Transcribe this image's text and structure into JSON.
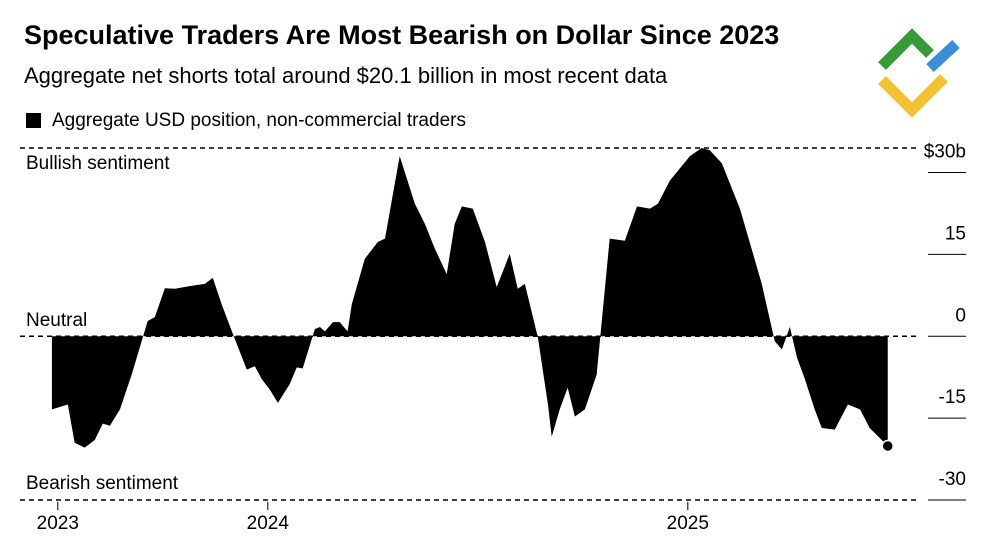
{
  "chart_data": {
    "type": "area",
    "title": "Speculative Traders Are Most Bearish on Dollar Since 2023",
    "subtitle": "Aggregate net shorts total around $20.1 billion in most recent data",
    "annotations": [
      "Bullish sentiment",
      "Neutral",
      "Bearish sentiment"
    ],
    "xlim": [
      2023.41,
      2025.529
    ],
    "xticks": [
      {
        "value": 2023.5,
        "label": "2023"
      },
      2024,
      2025
    ],
    "ylim": [
      -30,
      34.5
    ],
    "yticks": [
      {
        "value": 30,
        "label": "$30b"
      },
      15,
      0,
      -15,
      -30
    ],
    "series": [
      {
        "name": "Aggregate USD position, non-commercial traders",
        "color": "#000000",
        "x": [
          2023.486,
          2023.524,
          2023.54,
          2023.564,
          2023.588,
          2023.607,
          2023.624,
          2023.648,
          2023.676,
          2023.714,
          2023.731,
          2023.755,
          2023.779,
          2023.814,
          2023.85,
          2023.869,
          2023.89,
          2023.917,
          2023.95,
          2023.969,
          2023.986,
          2024.005,
          2024.024,
          2024.052,
          2024.069,
          2024.083,
          2024.112,
          2024.124,
          2024.136,
          2024.155,
          2024.171,
          2024.19,
          2024.2,
          2024.231,
          2024.262,
          2024.279,
          2024.314,
          2024.35,
          2024.374,
          2024.398,
          2024.426,
          2024.445,
          2024.462,
          2024.488,
          2024.517,
          2024.545,
          2024.576,
          2024.595,
          2024.612,
          2024.643,
          2024.667,
          2024.676,
          2024.695,
          2024.714,
          2024.731,
          2024.755,
          2024.783,
          2024.814,
          2024.85,
          2024.879,
          2024.91,
          2024.929,
          2024.957,
          2025.005,
          2025.033,
          2025.052,
          2025.081,
          2025.124,
          2025.152,
          2025.176,
          2025.207,
          2025.224,
          2025.243,
          2025.26,
          2025.279,
          2025.302,
          2025.319,
          2025.35,
          2025.381,
          2025.41,
          2025.433,
          2025.476
        ],
        "values": [
          -13.4,
          -12.5,
          -19.5,
          -20.4,
          -19,
          -16,
          -16.4,
          -13.4,
          -7,
          2.8,
          3.5,
          8.8,
          8.7,
          9.2,
          9.6,
          10.7,
          5.9,
          0.4,
          -6.1,
          -5.5,
          -7.9,
          -9.8,
          -12.2,
          -8.8,
          -5.7,
          -5.9,
          1.3,
          1.7,
          0.9,
          2.6,
          2.6,
          0.9,
          5.9,
          14.2,
          17.3,
          17.9,
          33,
          24.3,
          20.6,
          16,
          11.4,
          20.6,
          23.8,
          23.4,
          17.3,
          9,
          15.1,
          8.7,
          9.6,
          -0.2,
          -12.5,
          -18.4,
          -13.4,
          -9.4,
          -14.7,
          -13.4,
          -7,
          17.9,
          17.5,
          23.8,
          23.4,
          24.3,
          28.5,
          33,
          34.5,
          34.1,
          31.7,
          23.4,
          16,
          9.6,
          -0.9,
          -2.4,
          1.7,
          -3.9,
          -7.9,
          -13.4,
          -16.8,
          -17.1,
          -12.5,
          -13.4,
          -16.8,
          -20.1
        ]
      }
    ]
  }
}
